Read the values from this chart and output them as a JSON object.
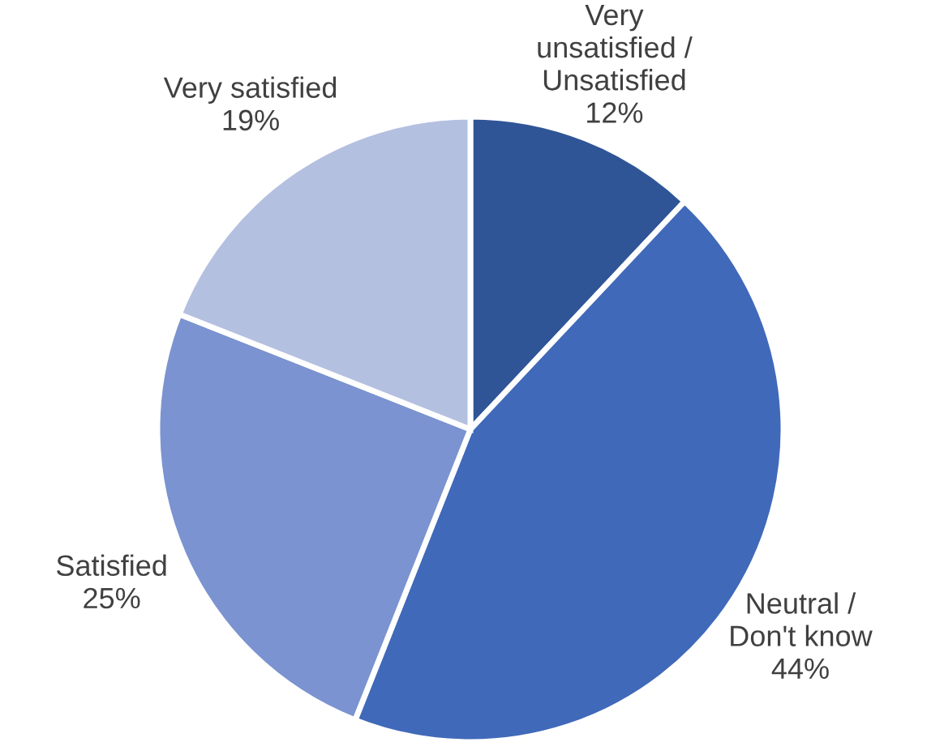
{
  "chart_data": {
    "type": "pie",
    "categories": [
      "Very\nunsatisfied /\nUnsatisfied",
      "Neutral /\nDon't know",
      "Satisfied",
      "Very satisfied"
    ],
    "values": [
      12,
      44,
      25,
      19
    ],
    "colors": [
      "#2f5597",
      "#4069b9",
      "#7b93d0",
      "#b4c0e0"
    ],
    "value_labels": [
      "12%",
      "44%",
      "25%",
      "19%"
    ]
  }
}
